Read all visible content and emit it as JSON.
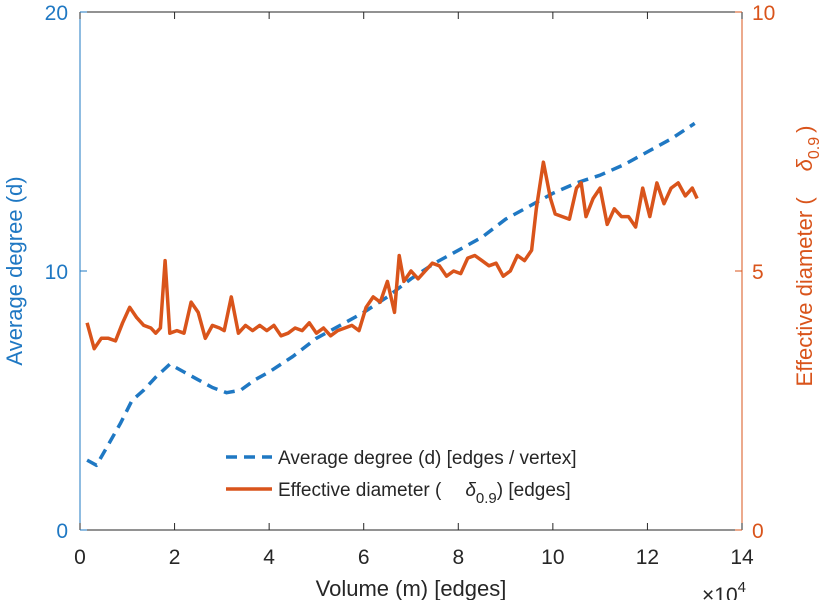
{
  "chart_data": {
    "type": "line",
    "title": "",
    "xlabel": "Volume (m) [edges]",
    "x_exponent_label": "×10",
    "x_exponent_power": "4",
    "xlim": [
      0,
      14
    ],
    "xticks": [
      "0",
      "2",
      "4",
      "6",
      "8",
      "10",
      "12",
      "14"
    ],
    "ylabel_left": "Average degree (d)",
    "ylim_left": [
      0,
      20
    ],
    "yticks_left": [
      "0",
      "10",
      "20"
    ],
    "ylabel_right_prefix": "Effective diameter (",
    "ylabel_right_symbol": "δ",
    "ylabel_right_subscript": "0.9",
    "ylabel_right_suffix": ")",
    "ylim_right": [
      0,
      10
    ],
    "yticks_right": [
      "0",
      "5",
      "10"
    ],
    "grid": false,
    "legend_position": "bottom-right",
    "series": [
      {
        "name": "Average degree (d) [edges / vertex]",
        "legend_label": "Average degree (d) [edges / vertex]",
        "axis": "left",
        "color": "#1f78c3",
        "style": "dashed",
        "x": [
          0.15,
          0.35,
          0.6,
          0.85,
          1.1,
          1.35,
          1.6,
          1.9,
          2.2,
          2.5,
          2.8,
          3.1,
          3.4,
          3.7,
          4.0,
          4.5,
          5.0,
          5.5,
          6.0,
          6.5,
          7.0,
          7.5,
          8.0,
          8.5,
          9.0,
          9.5,
          10.0,
          10.5,
          11.0,
          11.5,
          12.0,
          12.5,
          13.0
        ],
        "y": [
          2.7,
          2.5,
          3.3,
          4.1,
          5.0,
          5.4,
          5.9,
          6.4,
          6.1,
          5.8,
          5.5,
          5.3,
          5.4,
          5.8,
          6.1,
          6.7,
          7.4,
          7.9,
          8.4,
          9.0,
          9.7,
          10.3,
          10.8,
          11.3,
          12.0,
          12.5,
          13.0,
          13.4,
          13.7,
          14.1,
          14.6,
          15.1,
          15.7
        ]
      },
      {
        "name": "Effective diameter (δ0.9) [edges]",
        "legend_label_prefix": "Effective diameter (",
        "legend_symbol": "δ",
        "legend_subscript": "0.9",
        "legend_label_suffix": ") [edges]",
        "axis": "right",
        "color": "#d9541b",
        "style": "solid",
        "x": [
          0.15,
          0.3,
          0.45,
          0.6,
          0.75,
          0.9,
          1.05,
          1.2,
          1.35,
          1.5,
          1.6,
          1.7,
          1.8,
          1.9,
          2.05,
          2.2,
          2.35,
          2.5,
          2.65,
          2.8,
          2.95,
          3.05,
          3.2,
          3.35,
          3.5,
          3.65,
          3.8,
          3.95,
          4.1,
          4.25,
          4.4,
          4.55,
          4.7,
          4.85,
          5.0,
          5.15,
          5.3,
          5.45,
          5.6,
          5.75,
          5.9,
          6.05,
          6.2,
          6.35,
          6.5,
          6.65,
          6.75,
          6.85,
          7.0,
          7.15,
          7.3,
          7.45,
          7.6,
          7.75,
          7.9,
          8.05,
          8.2,
          8.35,
          8.5,
          8.65,
          8.8,
          8.95,
          9.1,
          9.25,
          9.4,
          9.55,
          9.65,
          9.8,
          9.95,
          10.05,
          10.2,
          10.35,
          10.5,
          10.6,
          10.7,
          10.85,
          11.0,
          11.15,
          11.3,
          11.45,
          11.6,
          11.75,
          11.9,
          12.05,
          12.2,
          12.35,
          12.5,
          12.65,
          12.8,
          12.95,
          13.05
        ],
        "y": [
          4.0,
          3.5,
          3.7,
          3.7,
          3.65,
          4.0,
          4.3,
          4.1,
          3.95,
          3.9,
          3.8,
          3.9,
          5.2,
          3.8,
          3.85,
          3.8,
          4.4,
          4.2,
          3.7,
          3.95,
          3.9,
          3.85,
          4.5,
          3.8,
          3.95,
          3.85,
          3.95,
          3.85,
          3.95,
          3.75,
          3.8,
          3.9,
          3.85,
          4.0,
          3.8,
          3.9,
          3.75,
          3.85,
          3.9,
          3.95,
          3.85,
          4.3,
          4.5,
          4.4,
          4.8,
          4.2,
          5.3,
          4.8,
          5.0,
          4.85,
          5.0,
          5.15,
          5.1,
          4.9,
          5.0,
          4.95,
          5.25,
          5.3,
          5.2,
          5.1,
          5.15,
          4.9,
          5.0,
          5.3,
          5.2,
          5.4,
          6.2,
          7.1,
          6.4,
          6.1,
          6.05,
          6.0,
          6.6,
          6.7,
          6.05,
          6.4,
          6.6,
          5.9,
          6.2,
          6.05,
          6.05,
          5.85,
          6.6,
          6.05,
          6.7,
          6.3,
          6.6,
          6.7,
          6.45,
          6.6,
          6.4
        ]
      }
    ]
  }
}
